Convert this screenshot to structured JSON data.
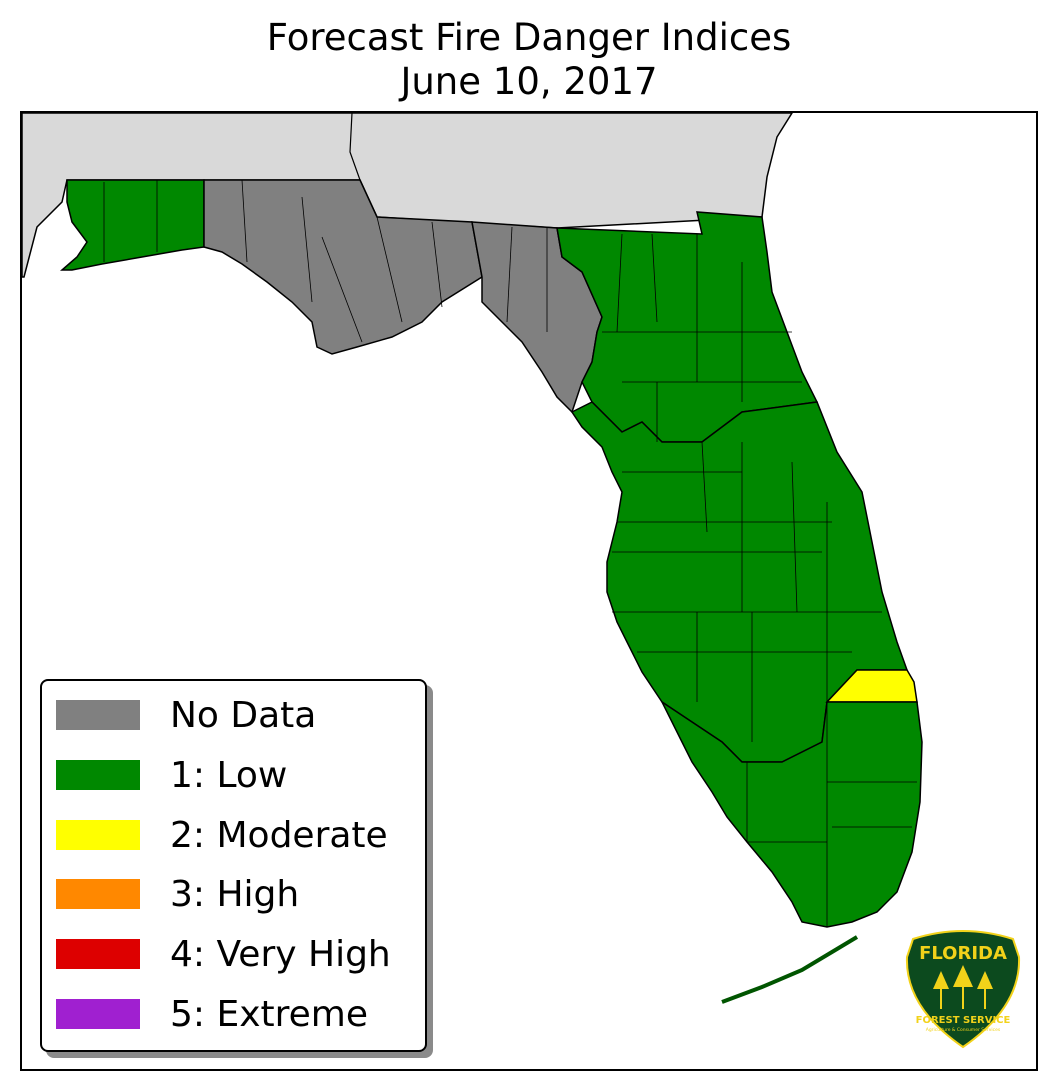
{
  "title": {
    "line1": "Forecast Fire Danger Indices",
    "line2": "June 10, 2017"
  },
  "map": {
    "region": "Florida",
    "colors": {
      "no_data": "#808080",
      "low": "#008800",
      "moderate": "#ffff00",
      "high": "#ff8800",
      "very_high": "#dd0000",
      "extreme": "#a020d0",
      "neighbor_states": "#d9d9d9",
      "water": "#ffffff"
    },
    "counties": [
      {
        "group": "western-panhandle",
        "level": "1: Low"
      },
      {
        "group": "central-panhandle",
        "level": "No Data"
      },
      {
        "group": "big-bend",
        "level": "No Data"
      },
      {
        "group": "north-east",
        "level": "1: Low"
      },
      {
        "group": "central",
        "level": "1: Low"
      },
      {
        "group": "south",
        "level": "1: Low"
      },
      {
        "group": "st-lucie-martin",
        "level": "2: Moderate"
      }
    ]
  },
  "legend": {
    "items": [
      {
        "label": "No Data",
        "color": "#808080"
      },
      {
        "label": "1: Low",
        "color": "#008800"
      },
      {
        "label": "2: Moderate",
        "color": "#ffff00"
      },
      {
        "label": "3: High",
        "color": "#ff8800"
      },
      {
        "label": "4: Very High",
        "color": "#dd0000"
      },
      {
        "label": "5: Extreme",
        "color": "#a020d0"
      }
    ]
  },
  "logo": {
    "line1": "FLORIDA",
    "line2": "FOREST SERVICE",
    "line3": "Agriculture & Consumer Services",
    "bg_color": "#0c4a1e",
    "text_color": "#f2d21a"
  }
}
